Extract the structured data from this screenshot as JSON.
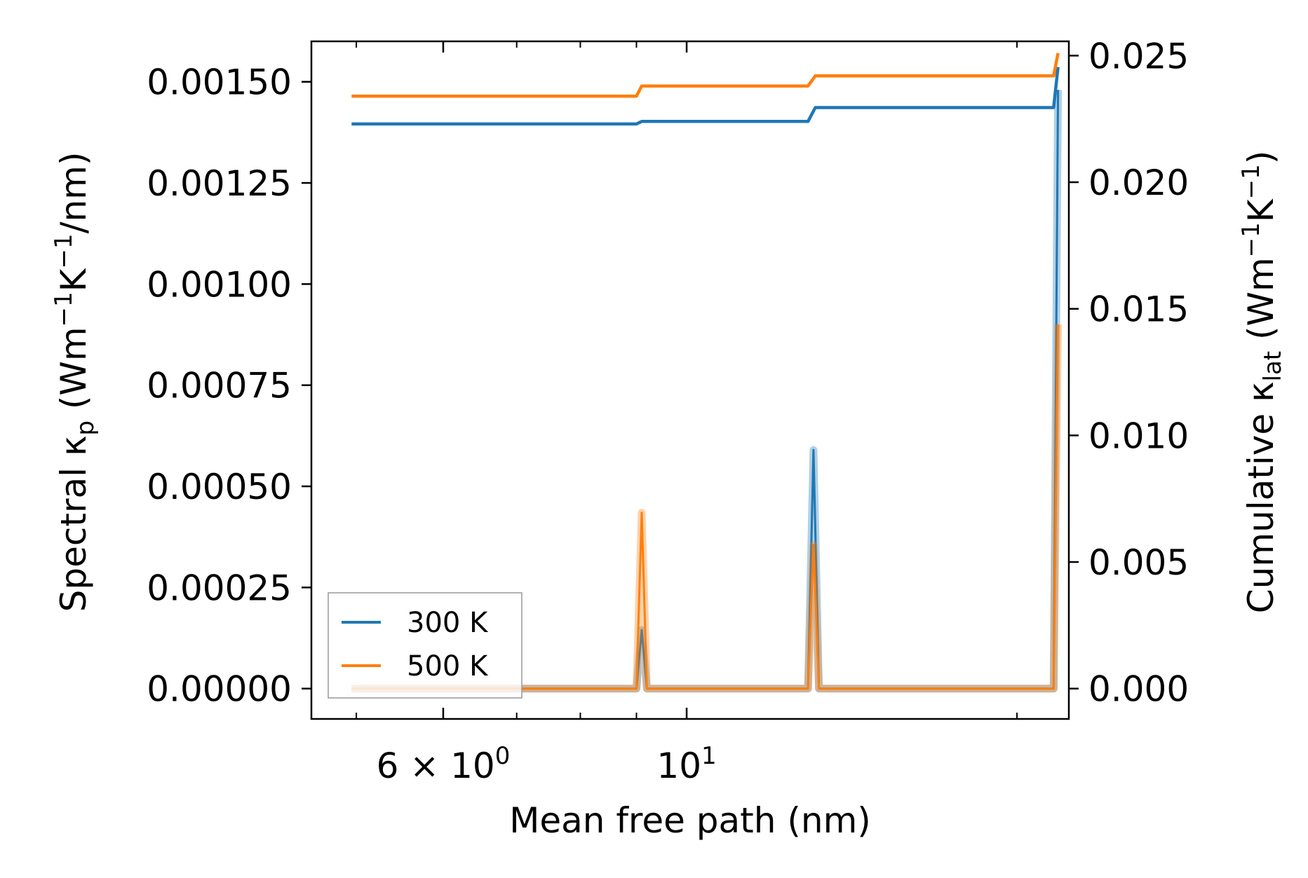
{
  "chart_data": {
    "type": "line",
    "title": "",
    "xlabel": "Mean free path (nm)",
    "xscale": "log",
    "xlim": [
      4.55,
      22.3
    ],
    "ylabel_left": {
      "main": "Spectral κ",
      "sub": "p",
      "units_pre": " (Wm",
      "sup1": "−1",
      "mid": "K",
      "sup2": "−1",
      "units_post": "/nm)"
    },
    "ylabel_right": {
      "main": "Cumulative κ",
      "sub": "lat",
      "units_pre": " (Wm",
      "sup1": "−1",
      "mid": "K",
      "sup2": "−1",
      "units_post": ")"
    },
    "ylim_left": [
      -7.5e-05,
      0.0016
    ],
    "ylim_right": [
      -0.0011983,
      0.025564
    ],
    "xticks": [
      {
        "value": 6,
        "label_base": "6 × 10",
        "label_exp": "0"
      },
      {
        "value": 10,
        "label_base": "10",
        "label_exp": "1"
      }
    ],
    "yticks_left": [
      "0.00000",
      "0.00025",
      "0.00050",
      "0.00075",
      "0.00100",
      "0.00125",
      "0.00150"
    ],
    "yticks_left_values": [
      0,
      0.00025,
      0.0005,
      0.00075,
      0.001,
      0.00125,
      0.0015
    ],
    "yticks_right": [
      "0.000",
      "0.005",
      "0.010",
      "0.015",
      "0.020",
      "0.025"
    ],
    "yticks_right_values": [
      0,
      0.005,
      0.01,
      0.015,
      0.02,
      0.025
    ],
    "legend": {
      "position": "lower-left",
      "entries": [
        "300 K",
        "500 K"
      ]
    },
    "series": [
      {
        "name": "300 K",
        "color": "#1f77b4",
        "spectral": {
          "x": [
            4.95,
            9.0,
            9.1,
            9.2,
            12.9,
            13.05,
            13.2,
            21.6,
            21.8
          ],
          "y": [
            0,
            0,
            0.000145,
            0,
            0,
            0.00059,
            0,
            0,
            0.00148
          ]
        },
        "cumulative": {
          "x": [
            4.95,
            9.0,
            9.1,
            12.9,
            13.1,
            21.6,
            21.8
          ],
          "y": [
            0.0223,
            0.0223,
            0.0224,
            0.0224,
            0.02295,
            0.02295,
            0.02455
          ]
        }
      },
      {
        "name": "500 K",
        "color": "#ff7f0e",
        "spectral": {
          "x": [
            4.95,
            9.0,
            9.1,
            9.2,
            12.9,
            13.05,
            13.2,
            21.6,
            21.8
          ],
          "y": [
            0,
            0,
            0.000435,
            0,
            0,
            0.000355,
            0,
            0,
            0.0009
          ]
        },
        "cumulative": {
          "x": [
            4.95,
            9.0,
            9.1,
            12.9,
            13.1,
            21.6,
            21.8
          ],
          "y": [
            0.0234,
            0.0234,
            0.0238,
            0.0238,
            0.0242,
            0.0242,
            0.0251
          ]
        }
      }
    ]
  }
}
